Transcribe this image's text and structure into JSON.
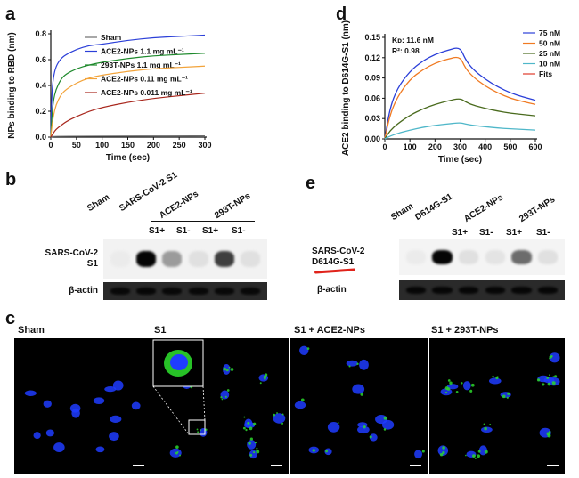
{
  "panels": {
    "a": "a",
    "b": "b",
    "c": "c",
    "d": "d",
    "e": "e"
  },
  "chart_data": [
    {
      "type": "line",
      "panel": "a",
      "xlabel": "Time (sec)",
      "ylabel": "NPs binding to RBD (nm)",
      "xlim": [
        0,
        300
      ],
      "ylim": [
        0,
        0.8
      ],
      "xticks": [
        "0",
        "50",
        "100",
        "150",
        "200",
        "250",
        "300"
      ],
      "yticks": [
        "0.0",
        "0.2",
        "0.4",
        "0.6",
        "0.8"
      ],
      "legend_position": "top-right",
      "series": [
        {
          "name": "Sham",
          "color": "#6e6e6e",
          "x": [
            0,
            5,
            20,
            50,
            100,
            150,
            200,
            250,
            300
          ],
          "y": [
            0,
            0.005,
            0.006,
            0.007,
            0.008,
            0.008,
            0.009,
            0.009,
            0.01
          ]
        },
        {
          "name": "ACE2-NPs 1.1 mg mL⁻¹",
          "color": "#2b3fd8",
          "x": [
            0,
            2,
            5,
            10,
            20,
            30,
            50,
            75,
            100,
            150,
            200,
            250,
            300
          ],
          "y": [
            0,
            0.34,
            0.46,
            0.55,
            0.61,
            0.64,
            0.68,
            0.71,
            0.72,
            0.75,
            0.77,
            0.78,
            0.79
          ]
        },
        {
          "name": "293T-NPs 1.1 mg mL⁻¹",
          "color": "#1f8a2d",
          "x": [
            0,
            2,
            5,
            10,
            20,
            30,
            50,
            75,
            100,
            150,
            200,
            250,
            300
          ],
          "y": [
            0,
            0.15,
            0.28,
            0.37,
            0.45,
            0.49,
            0.53,
            0.56,
            0.58,
            0.61,
            0.63,
            0.64,
            0.65
          ]
        },
        {
          "name": "ACE2-NPs 0.11 mg mL⁻¹",
          "color": "#f2a33a",
          "x": [
            0,
            2,
            5,
            10,
            20,
            30,
            50,
            75,
            100,
            150,
            200,
            250,
            300
          ],
          "y": [
            0,
            0.08,
            0.16,
            0.25,
            0.33,
            0.37,
            0.42,
            0.46,
            0.48,
            0.51,
            0.53,
            0.54,
            0.55
          ]
        },
        {
          "name": "ACE2-NPs 0.011 mg mL⁻¹",
          "color": "#a8261c",
          "x": [
            0,
            5,
            10,
            20,
            30,
            50,
            75,
            100,
            150,
            200,
            250,
            300
          ],
          "y": [
            0,
            0.03,
            0.06,
            0.09,
            0.12,
            0.16,
            0.2,
            0.23,
            0.27,
            0.3,
            0.32,
            0.34
          ]
        }
      ]
    },
    {
      "type": "line",
      "panel": "d",
      "xlabel": "Time (sec)",
      "ylabel": "ACE2 binding to D614G-S1 (nm)",
      "xlim": [
        0,
        600
      ],
      "ylim": [
        0,
        0.15
      ],
      "xticks": [
        "0",
        "100",
        "200",
        "300",
        "400",
        "500",
        "600"
      ],
      "yticks": [
        "0.00",
        "0.03",
        "0.06",
        "0.09",
        "0.12",
        "0.15"
      ],
      "annotations": [
        "Kᴅ: 11.6 nM",
        "R²: 0.98"
      ],
      "legend_position": "top-right",
      "series": [
        {
          "name": "75 nM",
          "color": "#2b3fd8",
          "x": [
            0,
            20,
            50,
            100,
            150,
            200,
            250,
            300,
            320,
            350,
            400,
            450,
            500,
            550,
            600
          ],
          "y": [
            0,
            0.045,
            0.075,
            0.1,
            0.115,
            0.125,
            0.131,
            0.136,
            0.118,
            0.103,
            0.088,
            0.077,
            0.068,
            0.062,
            0.057
          ]
        },
        {
          "name": "50 nM",
          "color": "#f07a22",
          "x": [
            0,
            20,
            50,
            100,
            150,
            200,
            250,
            300,
            320,
            350,
            400,
            450,
            500,
            550,
            600
          ],
          "y": [
            0,
            0.035,
            0.062,
            0.088,
            0.102,
            0.112,
            0.118,
            0.122,
            0.105,
            0.092,
            0.078,
            0.068,
            0.06,
            0.055,
            0.051
          ]
        },
        {
          "name": "25 nM",
          "color": "#4a6b1e",
          "x": [
            0,
            20,
            50,
            100,
            150,
            200,
            250,
            300,
            320,
            350,
            400,
            450,
            500,
            550,
            600
          ],
          "y": [
            0,
            0.012,
            0.022,
            0.035,
            0.044,
            0.051,
            0.056,
            0.06,
            0.055,
            0.05,
            0.045,
            0.041,
            0.038,
            0.036,
            0.034
          ]
        },
        {
          "name": "10 nM",
          "color": "#4fb7c9",
          "x": [
            0,
            20,
            50,
            100,
            150,
            200,
            250,
            300,
            320,
            350,
            400,
            450,
            500,
            550,
            600
          ],
          "y": [
            0,
            0.004,
            0.008,
            0.013,
            0.017,
            0.02,
            0.022,
            0.024,
            0.022,
            0.02,
            0.018,
            0.016,
            0.015,
            0.014,
            0.013
          ]
        },
        {
          "name": "Fits",
          "color": "#e03a2a"
        }
      ]
    }
  ],
  "blot_b": {
    "headers": [
      "Sham",
      "SARS-CoV-2 S1",
      "ACE2-NPs",
      "293T-NPs"
    ],
    "sub_labels": [
      "S1+",
      "S1-",
      "S1+",
      "S1-"
    ],
    "row1_label": [
      "SARS-CoV-2",
      "S1"
    ],
    "row2_label": "β-actin",
    "s1_intensity": [
      0.0,
      1.0,
      0.35,
      0.05,
      0.75,
      0.05
    ],
    "actin_intensity": [
      0.9,
      0.95,
      0.9,
      0.9,
      0.9,
      0.9
    ]
  },
  "blot_e": {
    "headers": [
      "Sham",
      "D614G-S1",
      "ACE2-NPs",
      "293T-NPs"
    ],
    "sub_labels": [
      "S1+",
      "S1-",
      "S1+",
      "S1-"
    ],
    "row1_label": [
      "SARS-CoV-2",
      "D614G-S1"
    ],
    "row2_label": "β-actin",
    "s1_intensity": [
      0.0,
      1.0,
      0.05,
      0.03,
      0.55,
      0.05
    ],
    "actin_intensity": [
      0.95,
      0.95,
      0.95,
      0.95,
      0.95,
      0.95
    ]
  },
  "microscopy": {
    "titles": [
      "Sham",
      "S1",
      "S1 + ACE2-NPs",
      "S1 + 293T-NPs"
    ]
  }
}
